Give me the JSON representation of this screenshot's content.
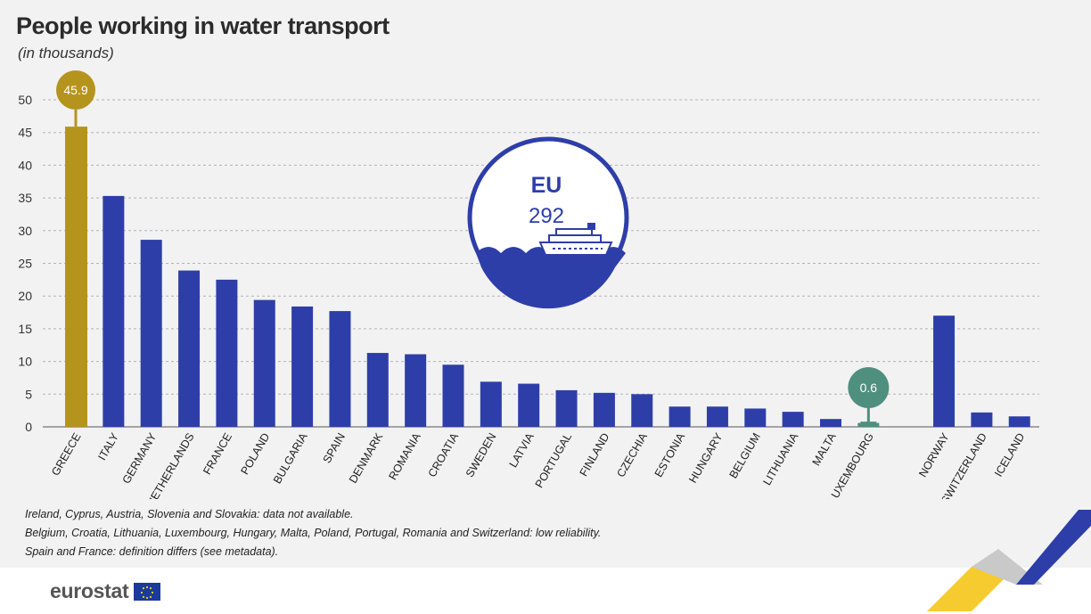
{
  "header": {
    "title": "People working in water transport",
    "subtitle": "(in thousands)"
  },
  "colors": {
    "bar": "#2e3ea8",
    "highlight_max": "#b5941e",
    "highlight_min": "#4f8f7e",
    "grid": "#b4b4b4",
    "background": "#f2f2f2"
  },
  "chart_data": {
    "type": "bar",
    "categories": [
      "GREECE",
      "ITALY",
      "GERMANY",
      "NETHERLANDS",
      "FRANCE",
      "POLAND",
      "BULGARIA",
      "SPAIN",
      "DENMARK",
      "ROMANIA",
      "CROATIA",
      "SWEDEN",
      "LATVIA",
      "PORTUGAL",
      "FINLAND",
      "CZECHIA",
      "ESTONIA",
      "HUNGARY",
      "BELGIUM",
      "LITHUANIA",
      "MALTA",
      "LUXEMBOURG",
      "NORWAY",
      "SWITZERLAND",
      "ICELAND"
    ],
    "values": [
      45.9,
      35.3,
      28.6,
      23.9,
      22.5,
      19.4,
      18.4,
      17.7,
      11.3,
      11.1,
      9.5,
      6.9,
      6.6,
      5.6,
      5.2,
      5.0,
      3.1,
      3.1,
      2.8,
      2.3,
      1.2,
      0.6,
      17.0,
      2.2,
      1.6
    ],
    "ylim": [
      0,
      50
    ],
    "yticks": [
      0,
      5,
      10,
      15,
      20,
      25,
      30,
      35,
      40,
      45,
      50
    ],
    "highlight_labels": {
      "GREECE": "45.9",
      "LUXEMBOURG": "0.6"
    },
    "grid": true
  },
  "eu_badge": {
    "label": "EU",
    "value": "292",
    "icon": "ship-icon"
  },
  "notes": [
    "Ireland, Cyprus, Austria, Slovenia and Slovakia: data not available.",
    "Belgium, Croatia, Lithuania, Luxembourg, Hungary, Malta, Poland, Portugal, Romania and Switzerland: low reliability.",
    "Spain and France: definition differs (see metadata)."
  ],
  "footer": {
    "logo_text": "eurostat"
  }
}
